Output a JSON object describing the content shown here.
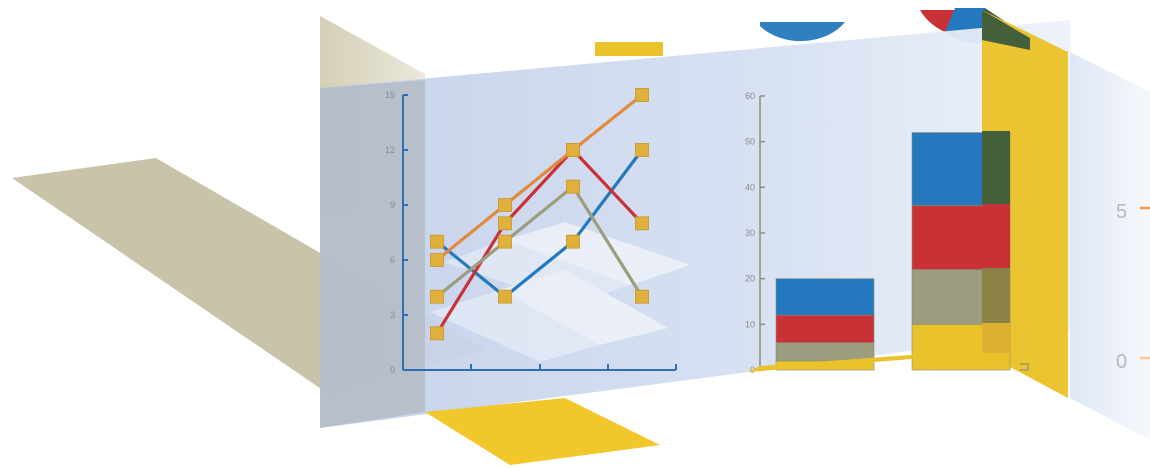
{
  "colors": {
    "blue": "#2478be",
    "red": "#c83237",
    "olive": "#9c9c7e",
    "orange": "#e28a3c",
    "gold": "#eac22a",
    "marker": "#e0b03c",
    "darkgreen": "#44603a",
    "panel": "#c9d6ee",
    "tan": "#c8c3aa",
    "line_axis": "#2c6fb5",
    "bar_axis": "#8f8f72",
    "right_axis": "#ee9a48"
  },
  "chart_data": [
    {
      "type": "line",
      "title": "",
      "xlabel": "",
      "ylabel": "",
      "x": [
        1,
        2,
        3,
        4
      ],
      "ylim": [
        0,
        15
      ],
      "yticks": [
        "0",
        "3",
        "6",
        "9",
        "12",
        "15"
      ],
      "grid": false,
      "series": [
        {
          "color": "blue",
          "values": [
            7,
            4,
            7,
            12
          ]
        },
        {
          "color": "red",
          "values": [
            2,
            8,
            12,
            8
          ]
        },
        {
          "color": "olive",
          "values": [
            4,
            7,
            10,
            4
          ]
        },
        {
          "color": "orange",
          "values": [
            6,
            9,
            12,
            15
          ]
        }
      ]
    },
    {
      "type": "bar",
      "stacked": true,
      "title": "",
      "xlabel": "",
      "ylabel": "",
      "categories": [
        "",
        ""
      ],
      "ylim": [
        0,
        60
      ],
      "yticks": [
        "0",
        "10",
        "20",
        "30",
        "40",
        "50",
        "60"
      ],
      "series": [
        {
          "color": "gold",
          "values": [
            2,
            10
          ]
        },
        {
          "color": "olive",
          "values": [
            4,
            12
          ]
        },
        {
          "color": "red",
          "values": [
            6,
            14
          ]
        },
        {
          "color": "blue",
          "values": [
            8,
            16
          ]
        }
      ]
    },
    {
      "type": "line",
      "title": "",
      "yticks": [
        "0",
        "5"
      ]
    }
  ]
}
